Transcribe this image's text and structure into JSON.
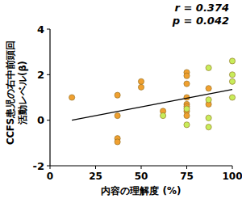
{
  "chart_data": {
    "type": "scatter",
    "xlabel": "内容の理解度 (%)",
    "ylabel": [
      "CCFS患児の右中前頭回",
      "活動レベル(β)"
    ],
    "annotations": [
      "r = 0.374",
      "p = 0.042"
    ],
    "xlim": [
      0,
      100
    ],
    "xticks": [
      0,
      25,
      50,
      75,
      100
    ],
    "ylim": [
      -2,
      4
    ],
    "yticks": [
      -2,
      0,
      2,
      4
    ],
    "grid": false,
    "series": [
      {
        "color": "#f0a030",
        "marker": "circle",
        "x": [
          12,
          37,
          37,
          37,
          37,
          50,
          50,
          62,
          75,
          75,
          75,
          75,
          75,
          75,
          75,
          75,
          87,
          87
        ],
        "values": [
          1.0,
          1.1,
          0.2,
          -0.8,
          -0.95,
          1.7,
          1.45,
          0.4,
          2.1,
          1.95,
          1.6,
          1.0,
          0.7,
          0.6,
          0.4,
          0.2,
          1.4,
          0.7
        ]
      },
      {
        "color": "#c8ec5a",
        "marker": "circle",
        "x": [
          62,
          75,
          75,
          87,
          87,
          87,
          87,
          100,
          100,
          100,
          100
        ],
        "values": [
          0.2,
          -0.2,
          0.5,
          2.3,
          0.9,
          0.1,
          -0.3,
          2.6,
          2.0,
          1.7,
          1.0
        ]
      },
      {
        "type": "line",
        "color": "#000000",
        "x": [
          12,
          100
        ],
        "values": [
          0.0,
          1.35
        ]
      }
    ]
  }
}
